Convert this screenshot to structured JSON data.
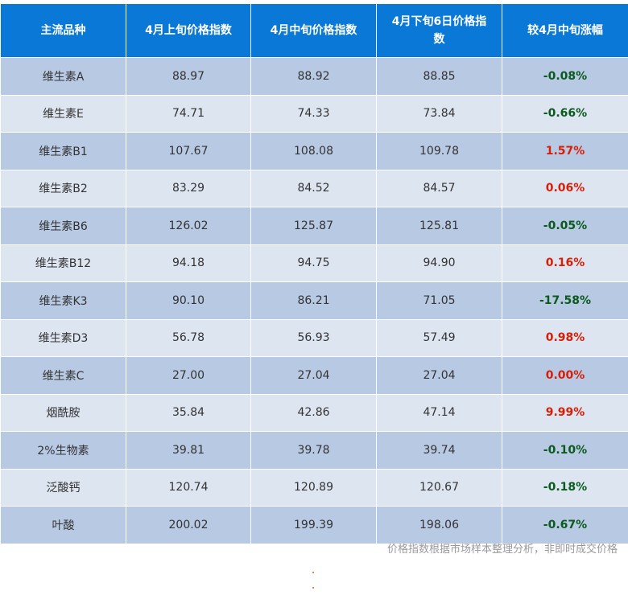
{
  "colors": {
    "header_bg": "#0a78d6",
    "row_dark": "#b8c9e3",
    "row_light": "#dde5f1",
    "up": "#d81e06",
    "down": "#0b5a1d"
  },
  "table": {
    "headers": [
      "主流品种",
      "4月上旬价格指数",
      "4月中旬价格指数",
      "4月下旬6日价格指数",
      "较4月中旬涨幅"
    ],
    "rows": [
      {
        "name": "维生素A",
        "early": "88.97",
        "mid": "88.92",
        "late6": "88.85",
        "change": "-0.08%",
        "trend": "down"
      },
      {
        "name": "维生素E",
        "early": "74.71",
        "mid": "74.33",
        "late6": "73.84",
        "change": "-0.66%",
        "trend": "down"
      },
      {
        "name": "维生素B1",
        "early": "107.67",
        "mid": "108.08",
        "late6": "109.78",
        "change": "1.57%",
        "trend": "up"
      },
      {
        "name": "维生素B2",
        "early": "83.29",
        "mid": "84.52",
        "late6": "84.57",
        "change": "0.06%",
        "trend": "up"
      },
      {
        "name": "维生素B6",
        "early": "126.02",
        "mid": "125.87",
        "late6": "125.81",
        "change": "-0.05%",
        "trend": "down"
      },
      {
        "name": "维生素B12",
        "early": "94.18",
        "mid": "94.75",
        "late6": "94.90",
        "change": "0.16%",
        "trend": "up"
      },
      {
        "name": "维生素K3",
        "early": "90.10",
        "mid": "86.21",
        "late6": "71.05",
        "change": "-17.58%",
        "trend": "down"
      },
      {
        "name": "维生素D3",
        "early": "56.78",
        "mid": "56.93",
        "late6": "57.49",
        "change": "0.98%",
        "trend": "up"
      },
      {
        "name": "维生素C",
        "early": "27.00",
        "mid": "27.04",
        "late6": "27.04",
        "change": "0.00%",
        "trend": "up"
      },
      {
        "name": "烟酰胺",
        "early": "35.84",
        "mid": "42.86",
        "late6": "47.14",
        "change": "9.99%",
        "trend": "up"
      },
      {
        "name": "2%生物素",
        "early": "39.81",
        "mid": "39.78",
        "late6": "39.74",
        "change": "-0.10%",
        "trend": "down"
      },
      {
        "name": "泛酸钙",
        "early": "120.74",
        "mid": "120.89",
        "late6": "120.67",
        "change": "-0.18%",
        "trend": "down"
      },
      {
        "name": "叶酸",
        "early": "200.02",
        "mid": "199.39",
        "late6": "198.06",
        "change": "-0.67%",
        "trend": "down"
      }
    ]
  },
  "footnote": "价格指数根据市场样本整理分析，非即时成交价格"
}
